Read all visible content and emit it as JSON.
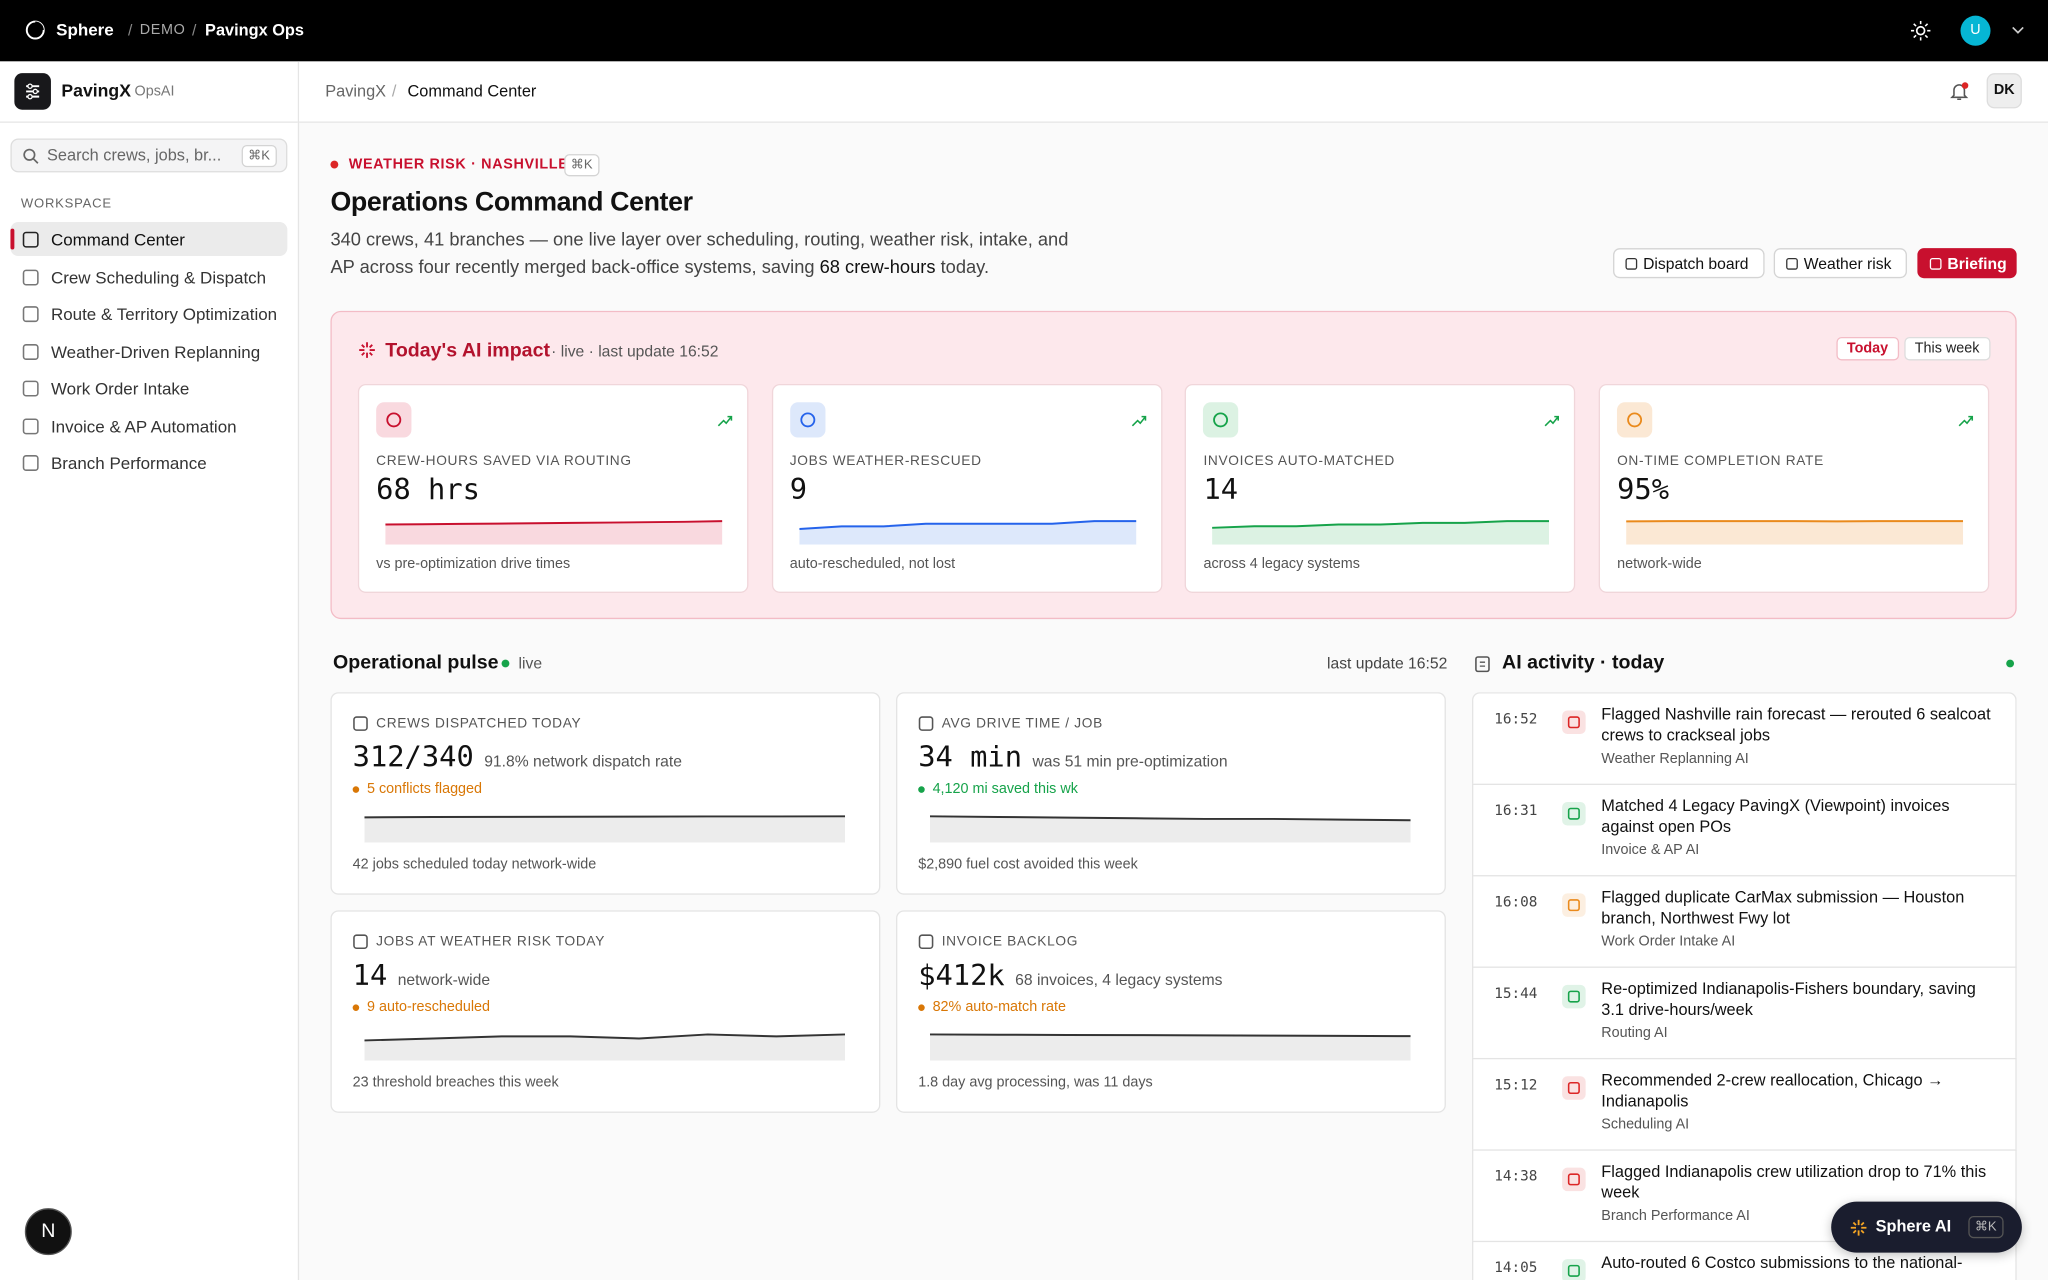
{
  "topbar": {
    "brand": "Sphere",
    "org": "DEMO",
    "project": "Pavingx Ops",
    "avatar": "U"
  },
  "sidebar": {
    "app": "PavingX",
    "app_tag": "OpsAI",
    "search_placeholder": "Search crews, jobs, br...",
    "search_shortcut": "⌘K",
    "section": "WORKSPACE",
    "nav": [
      "Command Center",
      "Crew Scheduling & Dispatch",
      "Route & Territory Optimization",
      "Weather-Driven Replanning",
      "Work Order Intake",
      "Invoice & AP Automation",
      "Branch Performance"
    ],
    "launcher": "N"
  },
  "header": {
    "breadcrumb": [
      "PavingX",
      "Command Center"
    ],
    "user": "DK"
  },
  "hero": {
    "alert": "WEATHER RISK · NASHVILLE",
    "shortcut": "⌘K",
    "title": "Operations Command Center",
    "description_before": "340 crews, 41 branches — one live layer over scheduling, routing, weather risk, intake, and AP across four recently merged back-office systems, saving ",
    "description_bold": "68 crew-hours",
    "description_after": " today.",
    "actions": [
      "Dispatch board",
      "Weather risk",
      "Briefing"
    ]
  },
  "impact": {
    "title": "Today's AI impact",
    "status": "· live · last update 16:52",
    "tabs": [
      "Today",
      "This week"
    ],
    "cards": [
      {
        "label": "CREW-HOURS SAVED VIA ROUTING",
        "value": "68 hrs",
        "note": "vs pre-optimization drive times",
        "color": "#c8102e",
        "fill": "#f9d9df",
        "spark": [
          58,
          59,
          60,
          61,
          62,
          63,
          64,
          65,
          66,
          68
        ]
      },
      {
        "label": "JOBS WEATHER-RESCUED",
        "value": "9",
        "note": "auto-rescheduled, not lost",
        "color": "#2563eb",
        "fill": "#dde8fb",
        "spark": [
          6,
          7,
          7,
          8,
          8,
          8,
          8,
          9,
          9
        ]
      },
      {
        "label": "INVOICES AUTO-MATCHED",
        "value": "14",
        "note": "across 4 legacy systems",
        "color": "#16a34a",
        "fill": "#dcf2e3",
        "spark": [
          10,
          11,
          11,
          12,
          12,
          13,
          13,
          14,
          14
        ]
      },
      {
        "label": "ON-TIME COMPLETION RATE",
        "value": "95%",
        "note": "network-wide",
        "color": "#ea8a1c",
        "fill": "#fbe8d4",
        "spark": [
          94,
          95,
          95,
          95,
          95,
          94,
          95,
          95,
          95
        ]
      }
    ]
  },
  "pulse": {
    "title": "Operational pulse",
    "status": "live",
    "updated": "last update 16:52",
    "cards": [
      {
        "label": "CREWS DISPATCHED TODAY",
        "value": "312/340",
        "detail": "91.8% network dispatch rate",
        "flag": "5 conflicts flagged",
        "flag_color": "#d97706",
        "note": "42 jobs scheduled today network-wide",
        "spark": [
          300,
          304,
          306,
          308,
          309,
          310,
          311,
          312
        ]
      },
      {
        "label": "AVG DRIVE TIME / JOB",
        "value": "34 min",
        "detail": "was 51 min pre-optimization",
        "flag": "4,120 mi saved this wk",
        "flag_color": "#16a34a",
        "note": "$2,890 fuel cost avoided this week",
        "spark": [
          40,
          39,
          38,
          37,
          36,
          36,
          35,
          34
        ]
      },
      {
        "label": "JOBS AT WEATHER RISK TODAY",
        "value": "14",
        "detail": "network-wide",
        "flag": "9 auto-rescheduled",
        "flag_color": "#d97706",
        "note": "23 threshold breaches this week",
        "spark": [
          10,
          11,
          12,
          12,
          11,
          13,
          12,
          13
        ]
      },
      {
        "label": "INVOICE BACKLOG",
        "value": "$412k",
        "detail": "68 invoices, 4 legacy systems",
        "flag": "82% auto-match rate",
        "flag_color": "#d97706",
        "note": "1.8 day avg processing, was 11 days",
        "spark": [
          440,
          436,
          432,
          428,
          424,
          420,
          416,
          412
        ]
      }
    ]
  },
  "activity": {
    "title": "AI activity · today",
    "items": [
      {
        "time": "16:52",
        "text": "Flagged Nashville rain forecast — rerouted 6 sealcoat crews to crackseal jobs",
        "source": "Weather Replanning AI",
        "color": "#dc2626"
      },
      {
        "time": "16:31",
        "text": "Matched 4 Legacy PavingX (Viewpoint) invoices against open POs",
        "source": "Invoice & AP AI",
        "color": "#16a34a"
      },
      {
        "time": "16:08",
        "text": "Flagged duplicate CarMax submission — Houston branch, Northwest Fwy lot",
        "source": "Work Order Intake AI",
        "color": "#ea8a1c"
      },
      {
        "time": "15:44",
        "text": "Re-optimized Indianapolis-Fishers boundary, saving 3.1 drive-hours/week",
        "source": "Routing AI",
        "color": "#16a34a"
      },
      {
        "time": "15:12",
        "text": "Recommended 2-crew reallocation, Chicago → Indianapolis",
        "source": "Scheduling AI",
        "color": "#dc2626"
      },
      {
        "time": "14:38",
        "text": "Flagged Indianapolis crew utilization drop to 71% this week",
        "source": "Branch Performance AI",
        "color": "#dc2626"
      },
      {
        "time": "14:05",
        "text": "Auto-routed 6 Costco submissions to the national-",
        "color": "#16a34a"
      }
    ]
  },
  "assistant": {
    "label": "Sphere AI",
    "shortcut": "⌘K"
  }
}
